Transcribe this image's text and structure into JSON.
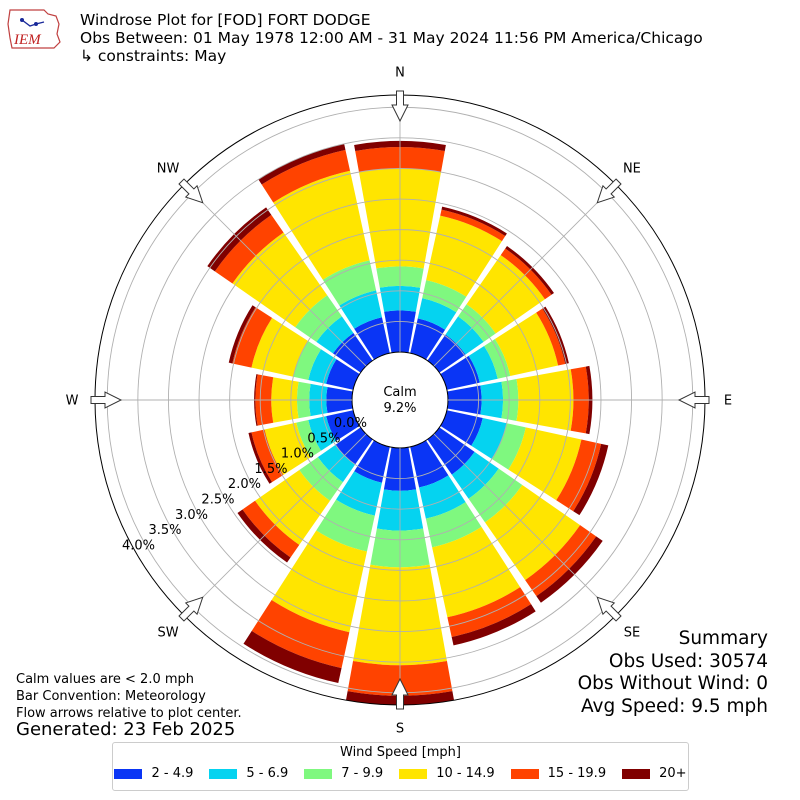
{
  "header": {
    "title": "Windrose Plot for [FOD] FORT DODGE",
    "obs_between": "Obs Between: 01 May 1978 12:00 AM - 31 May 2024 11:56 PM America/Chicago",
    "constraints": "↳ constraints: May"
  },
  "logo": {
    "text": "IEM"
  },
  "notes": {
    "calm_note": "Calm values are < 2.0 mph",
    "bar_convention": "Bar Convention: Meteorology",
    "flow_arrows": "Flow arrows relative to plot center.",
    "generated": "Generated: 23 Feb 2025"
  },
  "summary": {
    "title": "Summary",
    "obs_used": "Obs Used: 30574",
    "obs_without_wind": "Obs Without Wind: 0",
    "avg_speed": "Avg Speed: 9.5 mph"
  },
  "chart_data": {
    "type": "windrose",
    "calm": {
      "label": "Calm",
      "value": "9.2%"
    },
    "directions": [
      "N",
      "NNE",
      "NE",
      "ENE",
      "E",
      "ESE",
      "SE",
      "SSE",
      "S",
      "SSW",
      "SW",
      "WSW",
      "W",
      "WNW",
      "NW",
      "NNW"
    ],
    "cardinal_labels": [
      "N",
      "NE",
      "E",
      "SE",
      "S",
      "SW",
      "W",
      "NW"
    ],
    "radial_ticks": [
      "0.0%",
      "0.5%",
      "1.0%",
      "1.5%",
      "2.0%",
      "2.5%",
      "3.0%",
      "3.5%",
      "4.0%"
    ],
    "radial_max": 4.2,
    "legend_title": "Wind Speed [mph]",
    "bins": [
      {
        "name": "2 - 4.9",
        "color": "#0a35f5"
      },
      {
        "name": "5 - 6.9",
        "color": "#05d3f0"
      },
      {
        "name": "7 - 9.9",
        "color": "#7ff87f"
      },
      {
        "name": "10 - 14.9",
        "color": "#ffe500"
      },
      {
        "name": "15 - 19.9",
        "color": "#ff4300"
      },
      {
        "name": "20+",
        "color": "#800000"
      }
    ],
    "cumulative_percent": [
      [
        0.68,
        1.08,
        1.4,
        3.0,
        3.35,
        3.45
      ],
      [
        0.58,
        0.92,
        1.22,
        2.3,
        2.4,
        2.45
      ],
      [
        0.52,
        0.88,
        1.12,
        2.1,
        2.23,
        2.28
      ],
      [
        0.55,
        0.85,
        1.06,
        1.86,
        1.98,
        2.04
      ],
      [
        0.55,
        0.9,
        1.15,
        2.05,
        2.3,
        2.36
      ],
      [
        0.6,
        1.0,
        1.32,
        2.25,
        2.58,
        2.7
      ],
      [
        0.7,
        1.18,
        1.65,
        2.8,
        3.12,
        3.25
      ],
      [
        0.68,
        1.2,
        1.68,
        2.85,
        3.18,
        3.32
      ],
      [
        0.7,
        1.35,
        1.95,
        3.55,
        4.05,
        4.2
      ],
      [
        0.6,
        1.15,
        1.75,
        3.1,
        3.7,
        3.95
      ],
      [
        0.5,
        0.85,
        1.22,
        2.1,
        2.35,
        2.45
      ],
      [
        0.45,
        0.75,
        0.95,
        1.48,
        1.7,
        1.75
      ],
      [
        0.42,
        0.7,
        0.9,
        1.32,
        1.58,
        1.6
      ],
      [
        0.45,
        0.75,
        1.0,
        1.7,
        2.02,
        2.08
      ],
      [
        0.55,
        0.88,
        1.3,
        2.55,
        2.9,
        3.05
      ],
      [
        0.6,
        1.05,
        1.55,
        3.05,
        3.4,
        3.5
      ]
    ]
  }
}
